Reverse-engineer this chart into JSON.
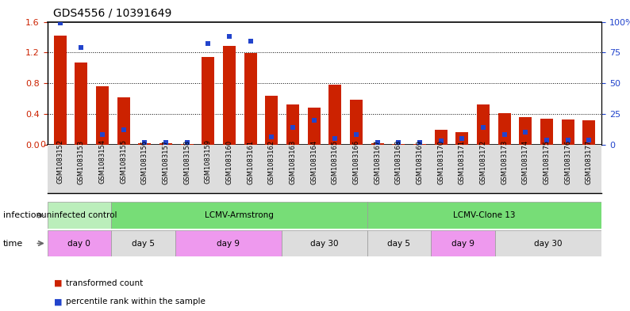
{
  "title": "GDS4556 / 10391649",
  "samples": [
    "GSM1083152",
    "GSM1083153",
    "GSM1083154",
    "GSM1083155",
    "GSM1083156",
    "GSM1083157",
    "GSM1083158",
    "GSM1083159",
    "GSM1083160",
    "GSM1083161",
    "GSM1083162",
    "GSM1083163",
    "GSM1083164",
    "GSM1083165",
    "GSM1083166",
    "GSM1083167",
    "GSM1083168",
    "GSM1083169",
    "GSM1083170",
    "GSM1083171",
    "GSM1083172",
    "GSM1083173",
    "GSM1083174",
    "GSM1083175",
    "GSM1083176",
    "GSM1083177"
  ],
  "transformed_count": [
    1.42,
    1.07,
    0.76,
    0.62,
    0.02,
    0.015,
    0.01,
    1.14,
    1.29,
    1.19,
    0.64,
    0.52,
    0.48,
    0.78,
    0.58,
    0.02,
    0.01,
    0.01,
    0.19,
    0.16,
    0.52,
    0.41,
    0.36,
    0.34,
    0.33,
    0.32
  ],
  "percentile_rank": [
    99,
    79,
    8,
    12,
    2,
    2,
    2,
    82,
    88,
    84,
    6,
    14,
    20,
    5,
    8,
    2,
    2,
    2,
    3,
    5,
    14,
    8,
    10,
    4,
    4,
    4
  ],
  "ylim_left": [
    0,
    1.6
  ],
  "ylim_right": [
    0,
    100
  ],
  "yticks_left": [
    0,
    0.4,
    0.8,
    1.2,
    1.6
  ],
  "yticks_right": [
    0,
    25,
    50,
    75,
    100
  ],
  "ytick_labels_right": [
    "0",
    "25",
    "50",
    "75",
    "100%"
  ],
  "bar_color": "#cc2200",
  "dot_color": "#2244cc",
  "infection_groups": [
    {
      "label": "uninfected control",
      "start": 0,
      "end": 3,
      "color": "#bbeebb"
    },
    {
      "label": "LCMV-Armstrong",
      "start": 3,
      "end": 15,
      "color": "#77dd77"
    },
    {
      "label": "LCMV-Clone 13",
      "start": 15,
      "end": 26,
      "color": "#77dd77"
    }
  ],
  "time_groups": [
    {
      "label": "day 0",
      "start": 0,
      "end": 3,
      "color": "#ee99ee"
    },
    {
      "label": "day 5",
      "start": 3,
      "end": 6,
      "color": "#dddddd"
    },
    {
      "label": "day 9",
      "start": 6,
      "end": 11,
      "color": "#ee99ee"
    },
    {
      "label": "day 30",
      "start": 11,
      "end": 15,
      "color": "#dddddd"
    },
    {
      "label": "day 5",
      "start": 15,
      "end": 18,
      "color": "#dddddd"
    },
    {
      "label": "day 9",
      "start": 18,
      "end": 21,
      "color": "#ee99ee"
    },
    {
      "label": "day 30",
      "start": 21,
      "end": 26,
      "color": "#dddddd"
    }
  ],
  "legend_items": [
    {
      "label": "transformed count",
      "color": "#cc2200"
    },
    {
      "label": "percentile rank within the sample",
      "color": "#2244cc"
    }
  ],
  "bg_color": "#ffffff",
  "plot_bg": "#ffffff",
  "xtick_bg": "#dddddd",
  "axis_label_color_left": "#cc2200",
  "axis_label_color_right": "#2244cc"
}
